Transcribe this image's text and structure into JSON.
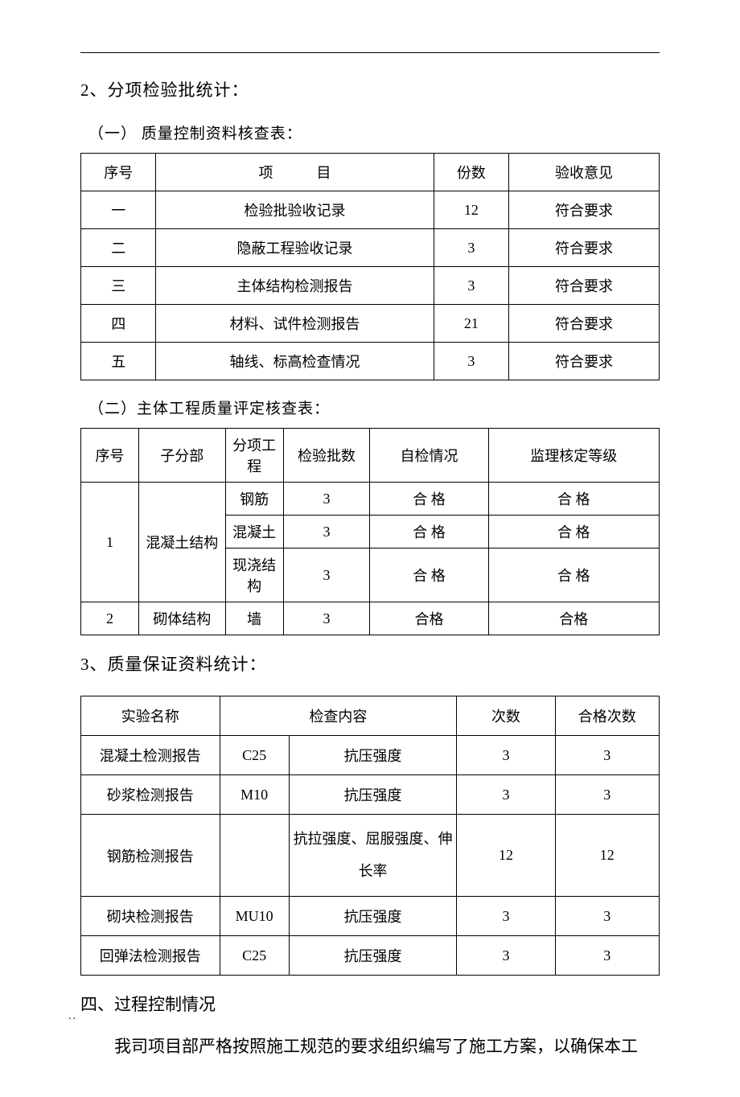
{
  "heading2": "2、分项检验批统计：",
  "sub1": "（一）  质量控制资料核查表：",
  "table1": {
    "headers": [
      "序号",
      "项目",
      "份数",
      "验收意见"
    ],
    "header_item_spaced": "项　　　目",
    "rows": [
      [
        "一",
        "检验批验收记录",
        "12",
        "符合要求"
      ],
      [
        "二",
        "隐蔽工程验收记录",
        "3",
        "符合要求"
      ],
      [
        "三",
        "主体结构检测报告",
        "3",
        "符合要求"
      ],
      [
        "四",
        "材料、试件检测报告",
        "21",
        "符合要求"
      ],
      [
        "五",
        "轴线、标高检查情况",
        "3",
        "符合要求"
      ]
    ]
  },
  "sub2": "（二）主体工程质量评定核查表：",
  "table2": {
    "headers": [
      "序号",
      "子分部",
      "分项工程",
      "检验批数",
      "自检情况",
      "监理核定等级"
    ],
    "group1": {
      "seq": "1",
      "sub": "混凝土结构",
      "rows": [
        [
          "钢筋",
          "3",
          "合 格",
          "合 格"
        ],
        [
          "混凝土",
          "3",
          "合 格",
          "合 格"
        ],
        [
          "现浇结构",
          "3",
          "合 格",
          "合 格"
        ]
      ]
    },
    "group2": {
      "seq": "2",
      "sub": "砌体结构",
      "rows": [
        [
          "墙",
          "3",
          "合格",
          "合格"
        ]
      ]
    }
  },
  "heading3": "3、质量保证资料统计：",
  "table3": {
    "headers": [
      "实验名称",
      "检查内容",
      "次数",
      "合格次数"
    ],
    "rows": [
      {
        "name": "混凝土检测报告",
        "spec": "C25",
        "content": "抗压强度",
        "count": "3",
        "pass": "3"
      },
      {
        "name": "砂浆检测报告",
        "spec": "M10",
        "content": "抗压强度",
        "count": "3",
        "pass": "3"
      },
      {
        "name": "钢筋检测报告",
        "spec": "",
        "content": "抗拉强度、屈服强度、伸长率",
        "count": "12",
        "pass": "12"
      },
      {
        "name": "砌块检测报告",
        "spec": "MU10",
        "content": "抗压强度",
        "count": "3",
        "pass": "3"
      },
      {
        "name": "回弹法检测报告",
        "spec": "C25",
        "content": "抗压强度",
        "count": "3",
        "pass": "3"
      }
    ]
  },
  "heading4": "四、过程控制情况",
  "body": "我司项目部严格按照施工规范的要求组织编写了施工方案，以确保本工",
  "footer": ".."
}
